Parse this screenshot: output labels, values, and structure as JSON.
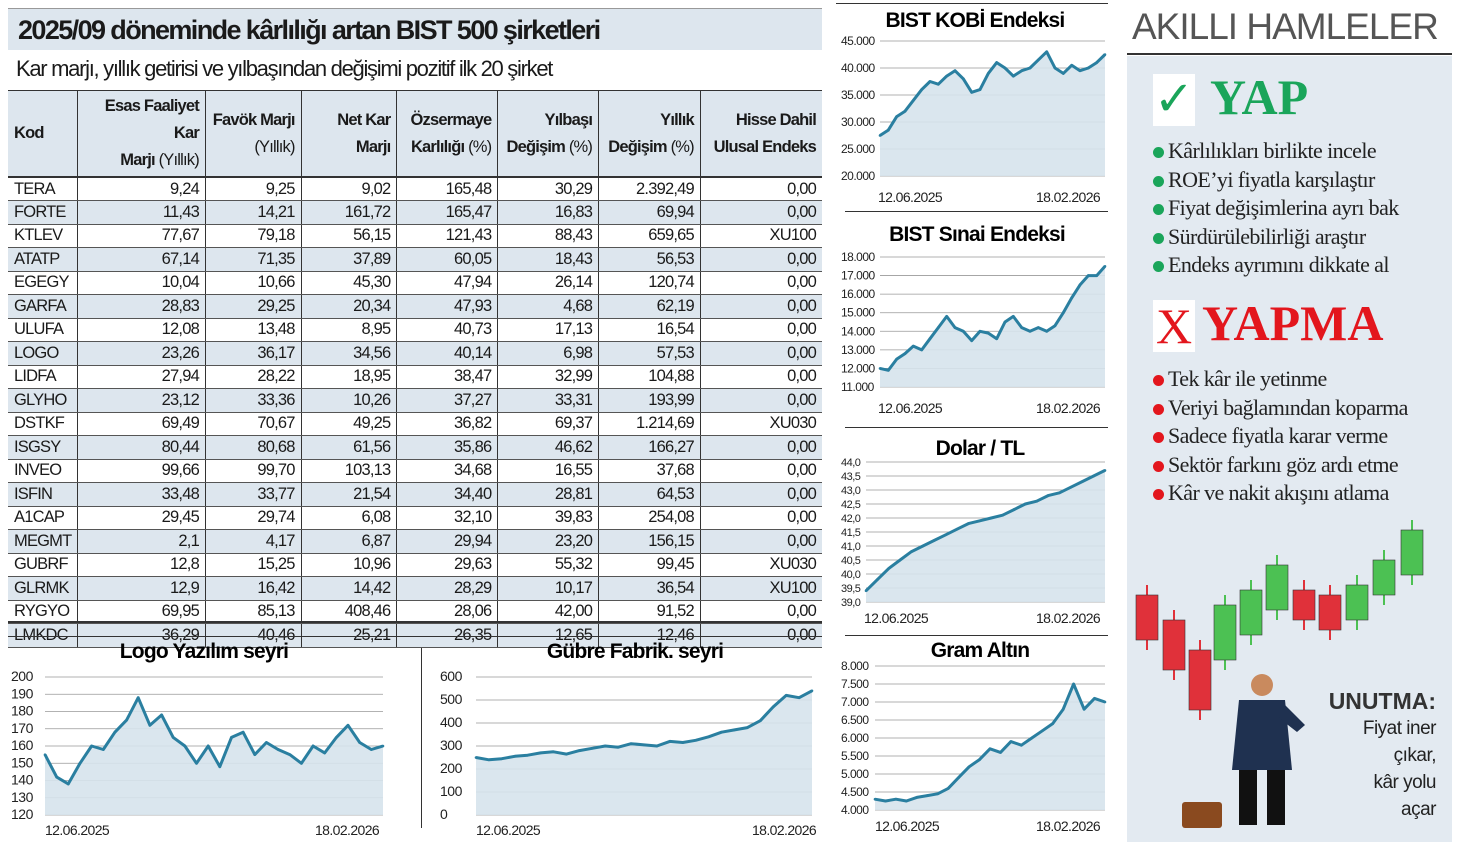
{
  "title": "2025/09 döneminde kârlılığı artan BIST 500 şirketleri",
  "subtitle": "Kar marjı, yıllık getirisi ve yılbaşından değişimi pozitif ilk 20 şirket",
  "table": {
    "headers": [
      {
        "main": "Kod",
        "unit": ""
      },
      {
        "main": "Esas Faaliyet Kar",
        "main2": "Marjı",
        "unit": "(Yıllık)"
      },
      {
        "main": "Favök Marjı",
        "main2": "",
        "unit": "(Yıllık)"
      },
      {
        "main": "Net Kar",
        "main2": "Marjı",
        "unit": ""
      },
      {
        "main": "Özsermaye",
        "main2": "Karlılığı",
        "unit": "(%)"
      },
      {
        "main": "Yılbaşı",
        "main2": "Değişim",
        "unit": "(%)"
      },
      {
        "main": "Yıllık",
        "main2": "Değişim",
        "unit": "(%)"
      },
      {
        "main": "Hisse Dahil",
        "main2": "Ulusal Endeks",
        "unit": ""
      }
    ],
    "rows": [
      [
        "TERA",
        "9,24",
        "9,25",
        "9,02",
        "165,48",
        "30,29",
        "2.392,49",
        "0,00"
      ],
      [
        "FORTE",
        "11,43",
        "14,21",
        "161,72",
        "165,47",
        "16,83",
        "69,94",
        "0,00"
      ],
      [
        "KTLEV",
        "77,67",
        "79,18",
        "56,15",
        "121,43",
        "88,43",
        "659,65",
        "XU100"
      ],
      [
        "ATATP",
        "67,14",
        "71,35",
        "37,89",
        "60,05",
        "18,43",
        "56,53",
        "0,00"
      ],
      [
        "EGEGY",
        "10,04",
        "10,66",
        "45,30",
        "47,94",
        "26,14",
        "120,74",
        "0,00"
      ],
      [
        "GARFA",
        "28,83",
        "29,25",
        "20,34",
        "47,93",
        "4,68",
        "62,19",
        "0,00"
      ],
      [
        "ULUFA",
        "12,08",
        "13,48",
        "8,95",
        "40,73",
        "17,13",
        "16,54",
        "0,00"
      ],
      [
        "LOGO",
        "23,26",
        "36,17",
        "34,56",
        "40,14",
        "6,98",
        "57,53",
        "0,00"
      ],
      [
        "LIDFA",
        "27,94",
        "28,22",
        "18,95",
        "38,47",
        "32,99",
        "104,88",
        "0,00"
      ],
      [
        "GLYHO",
        "23,12",
        "33,36",
        "10,26",
        "37,27",
        "33,31",
        "193,99",
        "0,00"
      ],
      [
        "DSTKF",
        "69,49",
        "70,67",
        "49,25",
        "36,82",
        "69,37",
        "1.214,69",
        "XU030"
      ],
      [
        "ISGSY",
        "80,44",
        "80,68",
        "61,56",
        "35,86",
        "46,62",
        "166,27",
        "0,00"
      ],
      [
        "INVEO",
        "99,66",
        "99,70",
        "103,13",
        "34,68",
        "16,55",
        "37,68",
        "0,00"
      ],
      [
        "ISFIN",
        "33,48",
        "33,77",
        "21,54",
        "34,40",
        "28,81",
        "64,53",
        "0,00"
      ],
      [
        "A1CAP",
        "29,45",
        "29,74",
        "6,08",
        "32,10",
        "39,83",
        "254,08",
        "0,00"
      ],
      [
        "MEGMT",
        "2,1",
        "4,17",
        "6,87",
        "29,94",
        "23,20",
        "156,15",
        "0,00"
      ],
      [
        "GUBRF",
        "12,8",
        "15,25",
        "10,96",
        "29,63",
        "55,32",
        "99,45",
        "XU030"
      ],
      [
        "GLRMK",
        "12,9",
        "16,42",
        "14,42",
        "28,29",
        "10,17",
        "36,54",
        "XU100"
      ],
      [
        "RYGYO",
        "69,95",
        "85,13",
        "408,46",
        "28,06",
        "42,00",
        "91,52",
        "0,00"
      ],
      [
        "LMKDC",
        "36,29",
        "40,46",
        "25,21",
        "26,35",
        "12,65",
        "12,46",
        "0,00"
      ]
    ]
  },
  "chart_data": [
    {
      "id": "logo",
      "type": "area",
      "title": "Logo Yazılım seyri",
      "x_labels": [
        "12.06.2025",
        "18.02.2026"
      ],
      "ylim": [
        120,
        200
      ],
      "y_ticks": [
        "200",
        "190",
        "180",
        "170",
        "160",
        "150",
        "140",
        "130",
        "120"
      ],
      "values": [
        155,
        142,
        138,
        150,
        160,
        158,
        168,
        175,
        188,
        172,
        178,
        165,
        160,
        150,
        160,
        148,
        165,
        168,
        155,
        162,
        158,
        155,
        150,
        160,
        156,
        165,
        172,
        162,
        158,
        160
      ]
    },
    {
      "id": "gubre",
      "type": "area",
      "title": "Gübre Fabrik. seyri",
      "x_labels": [
        "12.06.2025",
        "18.02.2026"
      ],
      "ylim": [
        0,
        600
      ],
      "y_ticks": [
        "600",
        "500",
        "400",
        "300",
        "200",
        "100",
        "0"
      ],
      "values": [
        250,
        240,
        245,
        255,
        260,
        270,
        275,
        265,
        280,
        290,
        300,
        295,
        310,
        305,
        300,
        320,
        315,
        325,
        340,
        360,
        370,
        380,
        410,
        470,
        520,
        510,
        540
      ]
    },
    {
      "id": "kobi",
      "type": "area",
      "title": "BIST KOBİ Endeksi",
      "x_labels": [
        "12.06.2025",
        "18.02.2026"
      ],
      "ylim": [
        20000,
        45000
      ],
      "y_ticks": [
        "45.000",
        "40.000",
        "35.000",
        "30.000",
        "25.000",
        "20.000"
      ],
      "values": [
        27500,
        28500,
        31000,
        32000,
        34000,
        36000,
        37500,
        37000,
        38500,
        39500,
        38000,
        35500,
        36000,
        39000,
        41000,
        40000,
        38500,
        39500,
        40000,
        41500,
        43000,
        40000,
        39000,
        40500,
        39500,
        40000,
        41000,
        42500
      ]
    },
    {
      "id": "sinai",
      "type": "area",
      "title": "BIST Sınai Endeksi",
      "x_labels": [
        "12.06.2025",
        "18.02.2026"
      ],
      "ylim": [
        11000,
        18000
      ],
      "y_ticks": [
        "18.000",
        "17.000",
        "16.000",
        "15.000",
        "14.000",
        "13.000",
        "12.000",
        "11.000"
      ],
      "values": [
        12000,
        11900,
        12500,
        12800,
        13200,
        13000,
        13600,
        14200,
        14800,
        14200,
        14000,
        13500,
        14000,
        13900,
        13600,
        14500,
        14800,
        14200,
        14000,
        14200,
        14000,
        14300,
        15000,
        15800,
        16500,
        17000,
        17000,
        17500
      ]
    },
    {
      "id": "dolar",
      "type": "area",
      "title": "Dolar / TL",
      "x_labels": [
        "12.06.2025",
        "18.02.2026"
      ],
      "ylim": [
        39,
        44
      ],
      "y_ticks": [
        "44,0",
        "43,5",
        "43,0",
        "42,5",
        "42,0",
        "41,5",
        "41,0",
        "40,5",
        "40,0",
        "39,5",
        "39,0"
      ],
      "values": [
        39.4,
        39.8,
        40.2,
        40.5,
        40.8,
        41.0,
        41.2,
        41.4,
        41.6,
        41.8,
        41.9,
        42.0,
        42.1,
        42.3,
        42.5,
        42.6,
        42.8,
        42.9,
        43.1,
        43.3,
        43.5,
        43.7
      ]
    },
    {
      "id": "altin",
      "type": "area",
      "title": "Gram Altın",
      "x_labels": [
        "12.06.2025",
        "18.02.2026"
      ],
      "ylim": [
        4000,
        8000
      ],
      "y_ticks": [
        "8.000",
        "7.500",
        "7.000",
        "6.500",
        "6.000",
        "5.500",
        "5.000",
        "4.500",
        "4.000"
      ],
      "values": [
        4300,
        4250,
        4300,
        4250,
        4350,
        4400,
        4450,
        4600,
        4900,
        5200,
        5400,
        5700,
        5600,
        5900,
        5800,
        6000,
        6200,
        6400,
        6800,
        7500,
        6800,
        7100,
        7000
      ]
    }
  ],
  "panel": {
    "heading": "AKILLI HAMLELER",
    "do": {
      "mark": "✓",
      "title": "YAP",
      "items": [
        "Kârlılıkları birlikte incele",
        "ROE’yi fiyatla karşılaştır",
        "Fiyat değişimlerina ayrı bak",
        "Sürdürülebilirliği araştır",
        "Endeks ayrımını dikkate al"
      ]
    },
    "dont": {
      "mark": "X",
      "title": "YAPMA",
      "items": [
        "Tek kâr ile yetinme",
        "Veriyi bağlamından koparma",
        "Sadece fiyatla karar verme",
        "Sektör farkını göz ardı etme",
        "Kâr ve nakit akışını atlama"
      ]
    },
    "note_title": "UNUTMA:",
    "note_lines": [
      "Fiyat iner",
      "çıkar,",
      "kâr yolu",
      "açar"
    ]
  },
  "colors": {
    "header_bg": "#dde6ee",
    "line": "#2a7fa0",
    "area": "#d6e3ec",
    "green": "#1aa55a",
    "red": "#e3161d"
  }
}
